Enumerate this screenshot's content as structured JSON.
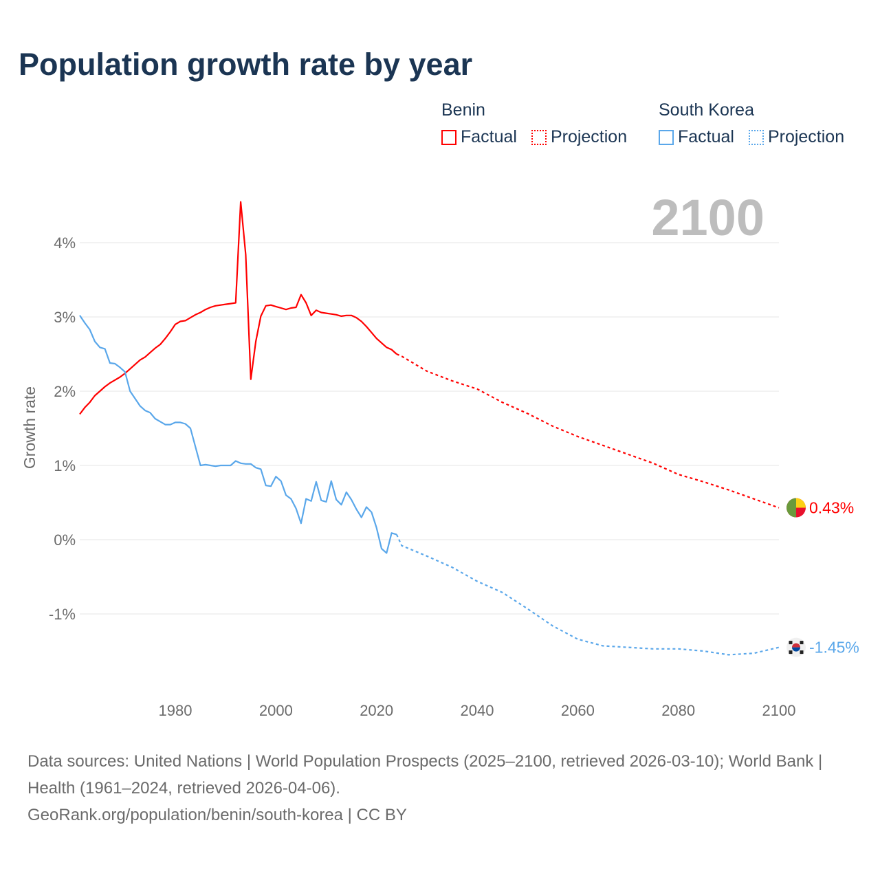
{
  "title": "Population growth rate by year",
  "legend": {
    "groups": [
      {
        "name": "Benin",
        "factual": "Factual",
        "projection": "Projection",
        "color": "#ff0000"
      },
      {
        "name": "South Korea",
        "factual": "Factual",
        "projection": "Projection",
        "color": "#5aa7ea"
      }
    ]
  },
  "year_label": "2100",
  "footer": {
    "sources": "Data sources: United Nations | World Population Prospects (2025–2100, retrieved 2026-03-10); World Bank | Health (1961–2024, retrieved 2026-04-06).",
    "credit": "GeoRank.org/population/benin/south-korea | CC BY"
  },
  "chart_data": {
    "type": "line",
    "title": "Population growth rate by year",
    "xlabel": "",
    "ylabel": "Growth rate",
    "xlim": [
      1961,
      2100
    ],
    "ylim": [
      -2,
      4.6
    ],
    "x_ticks": [
      1980,
      2000,
      2020,
      2040,
      2060,
      2080,
      2100
    ],
    "x_tick_labels": [
      "1980",
      "2000",
      "2020",
      "2040",
      "2060",
      "2080",
      "2100"
    ],
    "y_ticks": [
      4,
      3,
      2,
      1,
      0,
      -1
    ],
    "y_tick_labels": [
      "4%",
      "3%",
      "2%",
      "1%",
      "0%",
      "-1%"
    ],
    "grid": true,
    "legend_position": "top-right",
    "series": [
      {
        "name": "Benin",
        "color": "#ff0000",
        "end_label": "0.43%",
        "factual": {
          "x": [
            1961,
            1962,
            1963,
            1964,
            1965,
            1966,
            1967,
            1968,
            1969,
            1970,
            1971,
            1972,
            1973,
            1974,
            1975,
            1976,
            1977,
            1978,
            1979,
            1980,
            1981,
            1982,
            1983,
            1984,
            1985,
            1986,
            1987,
            1988,
            1989,
            1990,
            1991,
            1992,
            1993,
            1994,
            1995,
            1996,
            1997,
            1998,
            1999,
            2000,
            2001,
            2002,
            2003,
            2004,
            2005,
            2006,
            2007,
            2008,
            2009,
            2010,
            2011,
            2012,
            2013,
            2014,
            2015,
            2016,
            2017,
            2018,
            2019,
            2020,
            2021,
            2022,
            2023,
            2024
          ],
          "y": [
            1.69,
            1.78,
            1.85,
            1.94,
            2.0,
            2.06,
            2.11,
            2.15,
            2.19,
            2.24,
            2.3,
            2.36,
            2.42,
            2.46,
            2.52,
            2.58,
            2.63,
            2.71,
            2.8,
            2.9,
            2.94,
            2.95,
            2.99,
            3.03,
            3.06,
            3.1,
            3.13,
            3.15,
            3.16,
            3.17,
            3.18,
            3.19,
            4.55,
            3.84,
            2.16,
            2.67,
            3.01,
            3.15,
            3.16,
            3.14,
            3.12,
            3.1,
            3.12,
            3.13,
            3.3,
            3.19,
            3.02,
            3.09,
            3.06,
            3.05,
            3.04,
            3.03,
            3.01,
            3.02,
            3.02,
            2.99,
            2.94,
            2.87,
            2.79,
            2.71,
            2.65,
            2.59,
            2.56,
            2.5
          ]
        },
        "projection": {
          "x": [
            2024,
            2025,
            2030,
            2035,
            2040,
            2045,
            2050,
            2055,
            2060,
            2065,
            2070,
            2075,
            2080,
            2085,
            2090,
            2095,
            2100
          ],
          "y": [
            2.5,
            2.47,
            2.27,
            2.14,
            2.03,
            1.85,
            1.7,
            1.53,
            1.39,
            1.27,
            1.15,
            1.03,
            0.88,
            0.78,
            0.67,
            0.55,
            0.43
          ]
        }
      },
      {
        "name": "South Korea",
        "color": "#5aa7ea",
        "end_label": "-1.45%",
        "factual": {
          "x": [
            1961,
            1962,
            1963,
            1964,
            1965,
            1966,
            1967,
            1968,
            1969,
            1970,
            1971,
            1972,
            1973,
            1974,
            1975,
            1976,
            1977,
            1978,
            1979,
            1980,
            1981,
            1982,
            1983,
            1984,
            1985,
            1986,
            1987,
            1988,
            1989,
            1990,
            1991,
            1992,
            1993,
            1994,
            1995,
            1996,
            1997,
            1998,
            1999,
            2000,
            2001,
            2002,
            2003,
            2004,
            2005,
            2006,
            2007,
            2008,
            2009,
            2010,
            2011,
            2012,
            2013,
            2014,
            2015,
            2016,
            2017,
            2018,
            2019,
            2020,
            2021,
            2022,
            2023,
            2024
          ],
          "y": [
            3.02,
            2.92,
            2.83,
            2.67,
            2.59,
            2.57,
            2.38,
            2.37,
            2.32,
            2.26,
            2.0,
            1.9,
            1.8,
            1.74,
            1.71,
            1.63,
            1.59,
            1.55,
            1.55,
            1.58,
            1.58,
            1.56,
            1.5,
            1.25,
            1.0,
            1.01,
            1.0,
            0.99,
            1.0,
            1.0,
            1.0,
            1.06,
            1.03,
            1.02,
            1.02,
            0.97,
            0.95,
            0.73,
            0.72,
            0.85,
            0.79,
            0.6,
            0.55,
            0.42,
            0.22,
            0.55,
            0.52,
            0.78,
            0.53,
            0.51,
            0.79,
            0.54,
            0.47,
            0.64,
            0.54,
            0.41,
            0.3,
            0.44,
            0.37,
            0.16,
            -0.12,
            -0.18,
            0.09,
            0.07
          ]
        },
        "projection": {
          "x": [
            2024,
            2025,
            2030,
            2035,
            2040,
            2045,
            2050,
            2055,
            2060,
            2065,
            2070,
            2075,
            2080,
            2085,
            2090,
            2095,
            2100
          ],
          "y": [
            0.07,
            -0.08,
            -0.22,
            -0.37,
            -0.56,
            -0.71,
            -0.93,
            -1.16,
            -1.34,
            -1.43,
            -1.45,
            -1.47,
            -1.47,
            -1.5,
            -1.55,
            -1.53,
            -1.45
          ]
        }
      }
    ]
  }
}
